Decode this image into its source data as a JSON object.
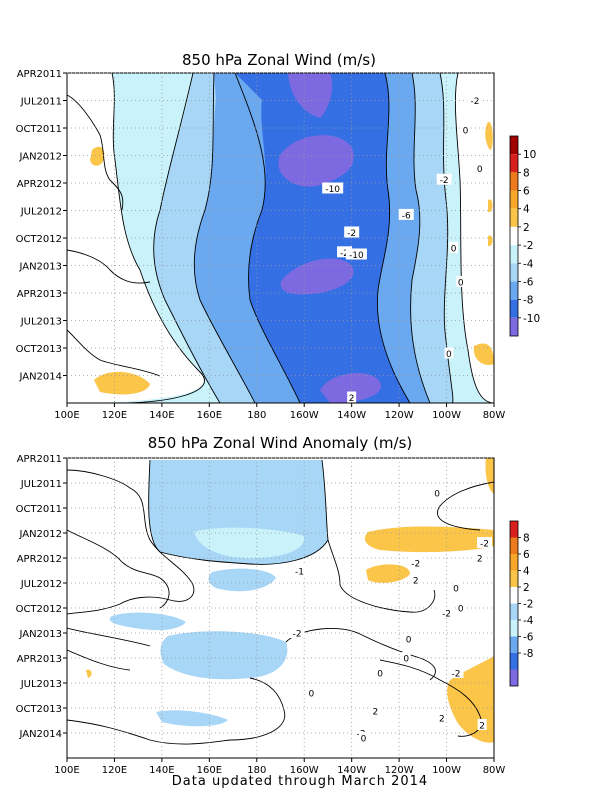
{
  "palette": {
    "p10": "#a00000",
    "p8": "#d8201c",
    "p6": "#ed7a1c",
    "p4": "#f7a82a",
    "p2": "#fbc54a",
    "zero": "#ffffff",
    "n2": "#c9f2fa",
    "n4": "#a7d6f7",
    "n6": "#6aa9ef",
    "n8": "#356fe4",
    "n10": "#7d6ae0",
    "line": "#000000",
    "grid": "#999999"
  },
  "footer": "Data updated through March 2014",
  "chart_data": [
    {
      "type": "heatmap",
      "title": "850 hPa Zonal Wind (m/s)",
      "x_labels": [
        "100E",
        "120E",
        "140E",
        "160E",
        "180",
        "160W",
        "140W",
        "120W",
        "100W",
        "80W"
      ],
      "y_labels": [
        "APR2011",
        "JUL2011",
        "OCT2011",
        "JAN2012",
        "APR2012",
        "JUL2012",
        "OCT2012",
        "JAN2013",
        "APR2013",
        "JUL2013",
        "OCT2013",
        "JAN2014"
      ],
      "colorbar": {
        "labels": [
          "10",
          "8",
          "6",
          "4",
          "2",
          "-2",
          "-4",
          "-6",
          "-8",
          "-10"
        ],
        "colors": [
          "p10",
          "p8",
          "p6",
          "p4",
          "p2",
          "zero",
          "n2",
          "n4",
          "n6",
          "n8",
          "n10"
        ]
      },
      "contour_labels": [
        {
          "text": "-2",
          "x": -88,
          "y": 2011.5
        },
        {
          "text": "0",
          "x": -92,
          "y": 2011.77
        },
        {
          "text": "0",
          "x": -86,
          "y": 2012.12
        },
        {
          "text": "-10",
          "x": -148,
          "y": 2012.3
        },
        {
          "text": "-2",
          "x": -101,
          "y": 2012.22
        },
        {
          "text": "-6",
          "x": -117,
          "y": 2012.54
        },
        {
          "text": "-2",
          "x": -140,
          "y": 2012.7
        },
        {
          "text": "-2",
          "x": -143,
          "y": 2012.88
        },
        {
          "text": "0",
          "x": -97,
          "y": 2012.84
        },
        {
          "text": "-10",
          "x": -138,
          "y": 2012.9
        },
        {
          "text": "0",
          "x": -94,
          "y": 2013.15
        },
        {
          "text": "0",
          "x": -99,
          "y": 2013.8
        },
        {
          "text": "2",
          "x": -140,
          "y": 2014.2
        }
      ]
    },
    {
      "type": "heatmap",
      "title": "850 hPa Zonal Wind Anomaly (m/s)",
      "x_labels": [
        "100E",
        "120E",
        "140E",
        "160E",
        "180",
        "160W",
        "140W",
        "120W",
        "100W",
        "80W"
      ],
      "y_labels": [
        "APR2011",
        "JUL2011",
        "OCT2011",
        "JAN2012",
        "APR2012",
        "JUL2012",
        "OCT2012",
        "JAN2013",
        "APR2013",
        "JUL2013",
        "OCT2013",
        "JAN2014"
      ],
      "colorbar": {
        "labels": [
          "8",
          "6",
          "4",
          "2",
          "-2",
          "-4",
          "-6",
          "-8"
        ],
        "colors": [
          "p8",
          "p6",
          "p4",
          "p2",
          "zero",
          "n4",
          "n2",
          "n6",
          "n8",
          "n10"
        ]
      },
      "contour_labels": [
        {
          "text": "0",
          "x": -104,
          "y": 2011.6
        },
        {
          "text": "-2",
          "x": -113,
          "y": 2012.3
        },
        {
          "text": "-1",
          "x": -162,
          "y": 2012.38
        },
        {
          "text": "-2",
          "x": -84,
          "y": 2012.1
        },
        {
          "text": "2",
          "x": -86,
          "y": 2012.25
        },
        {
          "text": "0",
          "x": -96,
          "y": 2012.55
        },
        {
          "text": "2",
          "x": -113,
          "y": 2012.47
        },
        {
          "text": "0",
          "x": -94,
          "y": 2012.75
        },
        {
          "text": "-2",
          "x": -100,
          "y": 2012.8
        },
        {
          "text": "-2",
          "x": -163,
          "y": 2013.0
        },
        {
          "text": "0",
          "x": -116,
          "y": 2013.06
        },
        {
          "text": "0",
          "x": -117,
          "y": 2013.25
        },
        {
          "text": "-2",
          "x": -96,
          "y": 2013.4
        },
        {
          "text": "0",
          "x": -128,
          "y": 2013.4
        },
        {
          "text": "2",
          "x": -130,
          "y": 2013.78
        },
        {
          "text": "0",
          "x": -157,
          "y": 2013.6
        },
        {
          "text": "2",
          "x": -102,
          "y": 2013.85
        },
        {
          "text": "-2",
          "x": -136,
          "y": 2014.0
        },
        {
          "text": "0",
          "x": -135,
          "y": 2014.05
        },
        {
          "text": "2",
          "x": -85,
          "y": 2013.92
        }
      ]
    }
  ]
}
